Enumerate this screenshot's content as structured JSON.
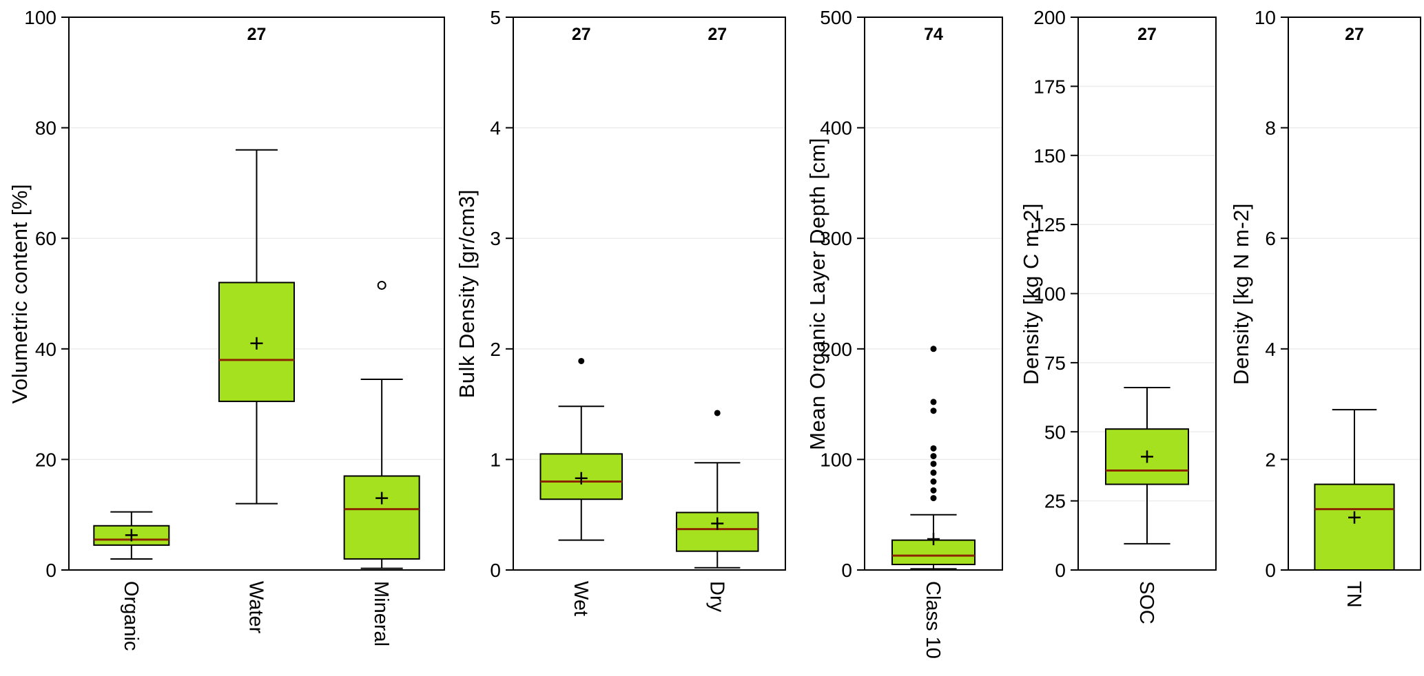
{
  "figure": {
    "background": "#ffffff"
  },
  "style": {
    "box_fill": "#a6e120",
    "box_stroke": "#000000",
    "median_color": "#8b2500",
    "mean_marker_color": "#000000",
    "outlier_color": "#000000",
    "axis_color": "#000000",
    "grid_color": "#ececec",
    "count_label_color": "#000000"
  },
  "chart_data": [
    {
      "type": "boxplot",
      "ylabel": "Volumetric content [%]",
      "ylim": [
        0,
        100
      ],
      "yticks": [
        0,
        20,
        40,
        60,
        80,
        100
      ],
      "categories": [
        "Organic",
        "Water",
        "Mineral"
      ],
      "counts": [
        {
          "box": 1,
          "label": "27"
        }
      ],
      "outlier_style": "open",
      "grid": true,
      "boxes": [
        {
          "label": "Organic",
          "low": 2,
          "q1": 4.5,
          "median": 5.5,
          "q3": 8,
          "high": 10.5,
          "mean": 6.3,
          "outliers": []
        },
        {
          "label": "Water",
          "low": 12,
          "q1": 30.5,
          "median": 38,
          "q3": 52,
          "high": 76,
          "mean": 41,
          "outliers": []
        },
        {
          "label": "Mineral",
          "low": 0.3,
          "q1": 2,
          "median": 11,
          "q3": 17,
          "high": 34.5,
          "mean": 13,
          "outliers": [
            51.5
          ]
        }
      ]
    },
    {
      "type": "boxplot",
      "ylabel": "Bulk Density [gr/cm3]",
      "ylim": [
        0,
        5
      ],
      "yticks": [
        0,
        1,
        2,
        3,
        4,
        5
      ],
      "categories": [
        "Wet",
        "Dry"
      ],
      "counts": [
        {
          "box": 0,
          "label": "27"
        },
        {
          "box": 1,
          "label": "27"
        }
      ],
      "outlier_style": "filled",
      "grid": true,
      "boxes": [
        {
          "label": "Wet",
          "low": 0.27,
          "q1": 0.64,
          "median": 0.8,
          "q3": 1.05,
          "high": 1.48,
          "mean": 0.83,
          "outliers": [
            1.89
          ]
        },
        {
          "label": "Dry",
          "low": 0.02,
          "q1": 0.17,
          "median": 0.37,
          "q3": 0.52,
          "high": 0.97,
          "mean": 0.42,
          "outliers": [
            1.42
          ]
        }
      ]
    },
    {
      "type": "boxplot",
      "ylabel": "Mean Organic Layer Depth [cm]",
      "ylim": [
        0,
        500
      ],
      "yticks": [
        0,
        100,
        200,
        300,
        400,
        500
      ],
      "categories": [
        "Class 10"
      ],
      "counts": [
        {
          "box": 0,
          "label": "74"
        }
      ],
      "outlier_style": "filled",
      "grid": true,
      "boxes": [
        {
          "label": "Class 10",
          "low": 1,
          "q1": 5,
          "median": 13,
          "q3": 27,
          "high": 50,
          "mean": 28,
          "outliers": [
            65,
            72,
            80,
            88,
            96,
            103,
            110,
            144,
            152,
            200
          ]
        }
      ]
    },
    {
      "type": "boxplot",
      "ylabel": "Density [kg C m-2]",
      "ylim": [
        0,
        200
      ],
      "yticks": [
        0,
        25,
        50,
        75,
        100,
        125,
        150,
        175,
        200
      ],
      "categories": [
        "SOC"
      ],
      "counts": [
        {
          "box": 0,
          "label": "27"
        }
      ],
      "outlier_style": "filled",
      "grid": true,
      "boxes": [
        {
          "label": "SOC",
          "low": 9.5,
          "q1": 31,
          "median": 36,
          "q3": 51,
          "high": 66,
          "mean": 41,
          "outliers": []
        }
      ]
    },
    {
      "type": "boxplot",
      "ylabel": "Density [kg N m-2]",
      "ylim": [
        0,
        10
      ],
      "yticks": [
        0,
        2,
        4,
        6,
        8,
        10
      ],
      "categories": [
        "TN"
      ],
      "counts": [
        {
          "box": 0,
          "label": "27"
        }
      ],
      "outlier_style": "filled",
      "grid": true,
      "boxes": [
        {
          "label": "TN",
          "low": 0,
          "q1": 0,
          "median": 1.1,
          "q3": 1.55,
          "high": 2.9,
          "mean": 0.95,
          "outliers": []
        }
      ]
    }
  ]
}
